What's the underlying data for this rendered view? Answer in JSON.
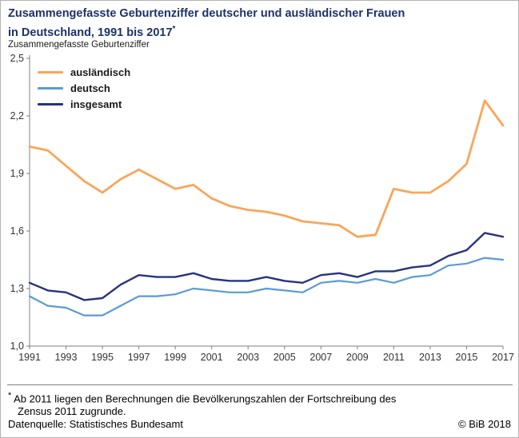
{
  "title": {
    "line1": "Zusammengefasste Geburtenziffer deutscher und ausländischer Frauen",
    "line2": "in Deutschland, 1991 bis 2017",
    "star": "*"
  },
  "y_axis_title": "Zusammengefasste Geburtenziffer",
  "footnote": {
    "marker": "*",
    "line1": "Ab 2011 liegen den Berechnungen die Bevölkerungszahlen der Fortschreibung des",
    "line2": "Zensus 2011 zugrunde.",
    "source": "Datenquelle: Statistisches Bundesamt",
    "copyright": "© BiB 2018"
  },
  "colors": {
    "auslaendisch": "#F9A65A",
    "deutsch": "#5B9BD5",
    "insgesamt": "#27337F",
    "axis": "#7f7f7f",
    "tick_text": "#333333",
    "title_text": "#1e3269"
  },
  "chart_data": {
    "type": "line",
    "title": "Zusammengefasste Geburtenziffer deutscher und ausländischer Frauen in Deutschland, 1991 bis 2017",
    "ylabel": "Zusammengefasste Geburtenziffer",
    "xlabel": "",
    "grid": false,
    "legend_position": "top-left",
    "ylim": [
      1.0,
      2.5
    ],
    "yticks": [
      1.0,
      1.3,
      1.6,
      1.9,
      2.2,
      2.5
    ],
    "ytick_labels": [
      "1,0",
      "1,3",
      "1,6",
      "1,9",
      "2,2",
      "2,5"
    ],
    "xticks": [
      1991,
      1993,
      1995,
      1997,
      1999,
      2001,
      2003,
      2005,
      2007,
      2009,
      2011,
      2013,
      2015,
      2017
    ],
    "x": [
      1991,
      1992,
      1993,
      1994,
      1995,
      1996,
      1997,
      1998,
      1999,
      2000,
      2001,
      2002,
      2003,
      2004,
      2005,
      2006,
      2007,
      2008,
      2009,
      2010,
      2011,
      2012,
      2013,
      2014,
      2015,
      2016,
      2017
    ],
    "series": [
      {
        "name": "ausländisch",
        "color_key": "auslaendisch",
        "stroke_width": 2.8,
        "values": [
          2.04,
          2.02,
          1.94,
          1.86,
          1.8,
          1.87,
          1.92,
          1.87,
          1.82,
          1.84,
          1.77,
          1.73,
          1.71,
          1.7,
          1.68,
          1.65,
          1.64,
          1.63,
          1.57,
          1.58,
          1.82,
          1.8,
          1.8,
          1.86,
          1.95,
          2.28,
          2.15
        ]
      },
      {
        "name": "deutsch",
        "color_key": "deutsch",
        "stroke_width": 2.2,
        "values": [
          1.26,
          1.21,
          1.2,
          1.16,
          1.16,
          1.21,
          1.26,
          1.26,
          1.27,
          1.3,
          1.29,
          1.28,
          1.28,
          1.3,
          1.29,
          1.28,
          1.33,
          1.34,
          1.33,
          1.35,
          1.33,
          1.36,
          1.37,
          1.42,
          1.43,
          1.46,
          1.45
        ]
      },
      {
        "name": "insgesamt",
        "color_key": "insgesamt",
        "stroke_width": 2.4,
        "values": [
          1.33,
          1.29,
          1.28,
          1.24,
          1.25,
          1.32,
          1.37,
          1.36,
          1.36,
          1.38,
          1.35,
          1.34,
          1.34,
          1.36,
          1.34,
          1.33,
          1.37,
          1.38,
          1.36,
          1.39,
          1.39,
          1.41,
          1.42,
          1.47,
          1.5,
          1.59,
          1.57
        ]
      }
    ]
  }
}
